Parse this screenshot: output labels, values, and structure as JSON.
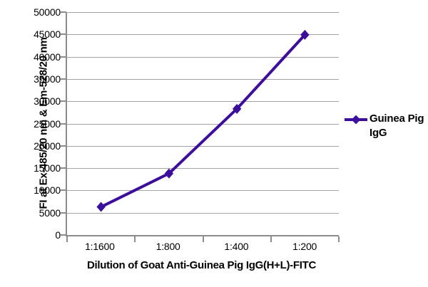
{
  "colors": {
    "line": "#3d0e9c",
    "grid": "#a3a3a3",
    "axis": "#8c8c8c",
    "text": "#000000",
    "background": "#ffffff"
  },
  "legend": {
    "label": "Guinea Pig IgG"
  },
  "chart_data": {
    "type": "line",
    "title": "",
    "xlabel": "Dilution of Goat Anti-Guinea Pig IgG(H+L)-FITC",
    "ylabel": "FI at Ex-485/20 nm & Em-528/20 nm",
    "categories": [
      "1:1600",
      "1:800",
      "1:400",
      "1:200"
    ],
    "series": [
      {
        "name": "Guinea Pig IgG",
        "marker": "diamond",
        "color": "#3d0e9c",
        "values": [
          6300,
          13800,
          28300,
          44900
        ]
      }
    ],
    "ylim": [
      0,
      50000
    ],
    "ytick_step": 5000,
    "yticks": [
      "0",
      "5000",
      "10000",
      "15000",
      "20000",
      "25000",
      "30000",
      "35000",
      "40000",
      "45000",
      "50000"
    ],
    "grid": "horizontal-only",
    "legend_position": "right"
  }
}
